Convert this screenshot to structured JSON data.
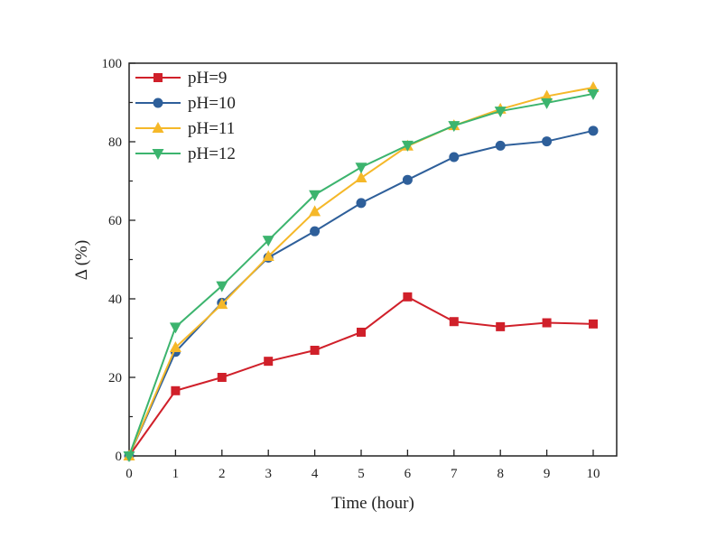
{
  "chart_data": {
    "type": "line",
    "title": "",
    "xlabel": "Time (hour)",
    "ylabel": "Δ (%)",
    "xlim": [
      0,
      10.5
    ],
    "ylim": [
      0,
      100
    ],
    "x_ticks": [
      "0",
      "1",
      "2",
      "3",
      "4",
      "5",
      "6",
      "7",
      "8",
      "9",
      "10"
    ],
    "y_ticks": [
      "0",
      "20",
      "40",
      "60",
      "80",
      "100"
    ],
    "legend_position": "top-left",
    "grid": false,
    "x": [
      0,
      1,
      2,
      3,
      4,
      5,
      6,
      7,
      8,
      9,
      10
    ],
    "series": [
      {
        "name": "pH=9",
        "color": "#d0202a",
        "marker": "square",
        "values": [
          0,
          16.6,
          20.0,
          24.1,
          26.9,
          31.5,
          40.5,
          34.2,
          32.9,
          33.9,
          33.6
        ]
      },
      {
        "name": "pH=10",
        "color": "#2e5f9a",
        "marker": "circle",
        "values": [
          0,
          26.5,
          39.0,
          50.5,
          57.2,
          64.4,
          70.3,
          76.1,
          79.0,
          80.1,
          82.8
        ]
      },
      {
        "name": "pH=11",
        "color": "#f5b829",
        "marker": "triangle-up",
        "values": [
          0,
          27.6,
          38.6,
          50.8,
          62.2,
          70.8,
          78.9,
          84.1,
          88.3,
          91.6,
          93.8
        ]
      },
      {
        "name": "pH=12",
        "color": "#3cb46e",
        "marker": "triangle-down",
        "values": [
          0,
          32.8,
          43.3,
          54.9,
          66.5,
          73.5,
          79.1,
          84.1,
          87.8,
          89.9,
          92.2
        ]
      }
    ]
  }
}
